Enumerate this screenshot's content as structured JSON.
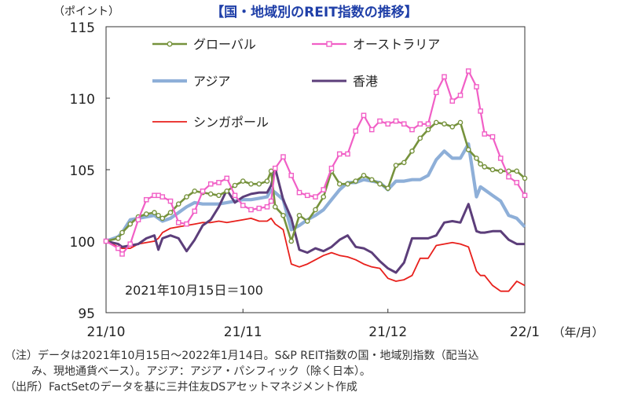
{
  "chart_data": {
    "type": "line",
    "title": "【国・地域別のREIT指数の推移】",
    "ylabel": "（ポイント）",
    "xlabel": "（年/月）",
    "ylim": [
      95,
      115
    ],
    "yticks": [
      95,
      100,
      105,
      110,
      115
    ],
    "xticks": [
      {
        "label": "21/10",
        "x": 0
      },
      {
        "label": "21/11",
        "x": 17
      },
      {
        "label": "21/12",
        "x": 35
      },
      {
        "label": "22/1",
        "x": 52
      }
    ],
    "annotation": "2021年10月15日＝100",
    "x": [
      0,
      1.5,
      2,
      3,
      4,
      5,
      6,
      6.5,
      7,
      8,
      9,
      10,
      11,
      12,
      13,
      14,
      15,
      16,
      17,
      18,
      19,
      20,
      20.5,
      21,
      22,
      23,
      24,
      25,
      26,
      27,
      28,
      29,
      30,
      31,
      32,
      33,
      34,
      35,
      36,
      37,
      38,
      39,
      40,
      41,
      42,
      43,
      44,
      45,
      46,
      46.5,
      47,
      48,
      49,
      50,
      51,
      52
    ],
    "series": [
      {
        "name": "グローバル",
        "color": "#76923c",
        "marker": "circle",
        "values": [
          100,
          100.2,
          100.6,
          101.2,
          101.7,
          101.9,
          102,
          101.8,
          101.6,
          102,
          102.6,
          103.1,
          103.5,
          103.4,
          103.3,
          103.2,
          103.5,
          103.9,
          104.2,
          104,
          104,
          104.2,
          104.9,
          102.4,
          101.8,
          100,
          101.8,
          101.4,
          102.2,
          103.1,
          104.9,
          104,
          104,
          104.2,
          104.6,
          104.3,
          104,
          103.7,
          105.3,
          105.5,
          106.3,
          107.2,
          107.8,
          108.3,
          108.2,
          108,
          108.3,
          106.4,
          105.8,
          105.4,
          105.2,
          105,
          104.9,
          104.9,
          104.9,
          104.4
        ]
      },
      {
        "name": "オーストラリア",
        "color": "#f15fc6",
        "marker": "square",
        "values": [
          100,
          99.5,
          99.1,
          99.8,
          101.5,
          102.9,
          103.2,
          103.2,
          103.1,
          102.8,
          101.3,
          101.2,
          102.1,
          103.5,
          104,
          104.1,
          104.4,
          103.2,
          102.5,
          102.2,
          102.3,
          102.4,
          102.8,
          105.1,
          105.9,
          104.6,
          103.4,
          103.2,
          103.1,
          103.6,
          105.1,
          106.1,
          106.1,
          107.7,
          108.8,
          107.8,
          108.4,
          108.2,
          108.4,
          108.2,
          107.8,
          108.2,
          108.2,
          110.4,
          111.5,
          109.8,
          110.2,
          111.9,
          110.8,
          109.1,
          107.5,
          107.3,
          105.8,
          104.5,
          104.1,
          103.2
        ]
      },
      {
        "name": "アジア",
        "color": "#8eafd8",
        "marker": "none",
        "values": [
          100,
          100.3,
          100.6,
          101.5,
          101.6,
          101.7,
          101.8,
          101.6,
          101.4,
          101.6,
          102,
          102.4,
          102.7,
          102.6,
          102.6,
          102.6,
          102.7,
          102.8,
          102.9,
          102.9,
          103,
          103.1,
          103.6,
          103.4,
          102.9,
          100.8,
          101.1,
          101.5,
          101.8,
          102.2,
          102.9,
          103.6,
          104.1,
          104.1,
          104.3,
          104.2,
          104.1,
          103.6,
          104.2,
          104.2,
          104.3,
          104.3,
          104.6,
          105.7,
          106.3,
          105.8,
          105.8,
          106.8,
          103.1,
          103.8,
          103.6,
          103.2,
          102.8,
          101.8,
          101.6,
          101
        ]
      },
      {
        "name": "香港",
        "color": "#5c3e7a",
        "marker": "none",
        "values": [
          100,
          99.8,
          99.6,
          99.7,
          99.8,
          100.2,
          100.4,
          99.4,
          100.2,
          100.4,
          100.2,
          99.3,
          100.1,
          101.1,
          101.5,
          102.4,
          103.6,
          102.7,
          103.1,
          103.3,
          103.4,
          103.4,
          103.9,
          105.1,
          102.9,
          101.6,
          99.4,
          99.2,
          99.5,
          99.3,
          99.6,
          100.1,
          100.4,
          99.6,
          99.5,
          99.2,
          98.6,
          98.1,
          97.8,
          98.5,
          100.2,
          100.2,
          100.2,
          100.4,
          101.3,
          101.4,
          101.3,
          102.6,
          100.7,
          100.6,
          100.6,
          100.7,
          100.7,
          100.1,
          99.8,
          99.8
        ]
      },
      {
        "name": "シンガポール",
        "color": "#e8201c",
        "marker": "none",
        "values": [
          100,
          99.6,
          99.5,
          99.5,
          99.8,
          99.9,
          100,
          100.2,
          100.6,
          100.9,
          101,
          101.1,
          101.2,
          101.3,
          101.3,
          101.4,
          101.3,
          101.4,
          101.5,
          101.6,
          101.4,
          101.4,
          101.6,
          101.2,
          100.8,
          98.4,
          98.2,
          98.4,
          98.7,
          99,
          99.2,
          99,
          98.9,
          98.7,
          98.4,
          98.2,
          98.1,
          97.4,
          97.2,
          97.3,
          97.6,
          98.8,
          98.8,
          99.7,
          99.8,
          99.9,
          99.8,
          99.6,
          97.9,
          97.6,
          97.6,
          96.9,
          96.5,
          96.5,
          97.2,
          96.9
        ]
      }
    ]
  },
  "notes": {
    "line1": "（注）データは2021年10月15日～2022年1月14日。S&P REIT指数の国・地域別指数（配当込",
    "line2": "み、現地通貨ベース）。アジア：アジア・パシフィック（除く日本）。",
    "line3": "（出所）FactSetのデータを基に三井住友DSアセットマネジメント作成"
  }
}
